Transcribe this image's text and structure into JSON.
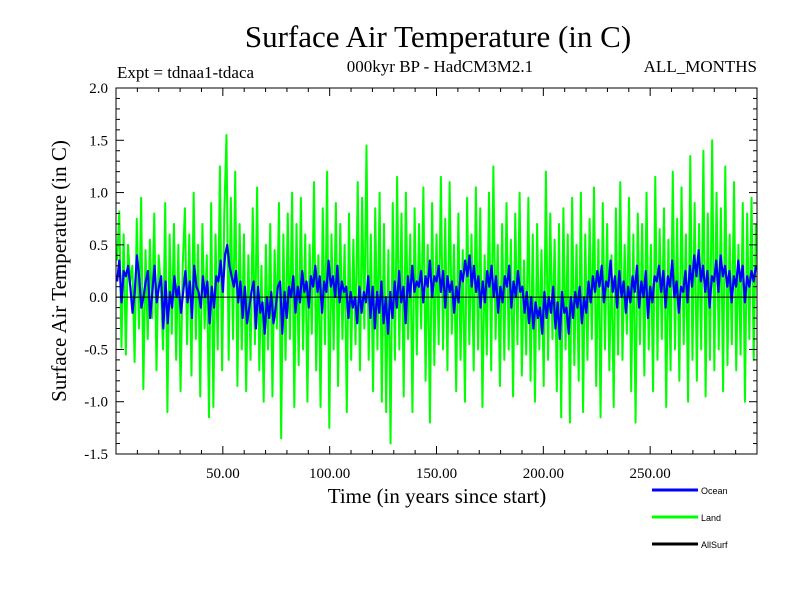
{
  "chart_data": {
    "type": "line",
    "title": "Surface Air Temperature (in C)",
    "subtitle": "000kyr BP - HadCM3M2.1",
    "expt_label": "Expt = tdnaa1-tdaca",
    "months_label": "ALL_MONTHS",
    "xlabel": "Time (in years since start)",
    "ylabel": "Surface Air Temperature (in C)",
    "xlim": [
      0,
      300
    ],
    "ylim": [
      -1.5,
      2.0
    ],
    "xticks": [
      50,
      100,
      150,
      200,
      250
    ],
    "xtick_labels": [
      "50.00",
      "100.00",
      "150.00",
      "200.00",
      "250.00"
    ],
    "yticks": [
      -1.5,
      -1.0,
      -0.5,
      0.0,
      0.5,
      1.0,
      1.5,
      2.0
    ],
    "ytick_labels": [
      "-1.5",
      "-1.0",
      "-0.5",
      "0.0",
      "0.5",
      "1.0",
      "1.5",
      "2.0"
    ],
    "zero_line": 0.0,
    "series": [
      {
        "name": "Land",
        "color": "#00ff00",
        "values": [
          0.35,
          0.82,
          -0.48,
          0.6,
          -0.55,
          0.5,
          0.15,
          0.3,
          -0.62,
          0.75,
          -0.3,
          0.95,
          -0.88,
          0.45,
          -0.4,
          0.55,
          -0.2,
          0.8,
          -0.7,
          0.4,
          0.1,
          -0.5,
          0.9,
          -1.1,
          0.6,
          -0.35,
          0.7,
          -0.6,
          0.5,
          -0.9,
          0.3,
          0.85,
          -0.45,
          0.6,
          -0.75,
          1.0,
          -0.4,
          0.5,
          -0.95,
          0.7,
          -0.3,
          0.4,
          -1.15,
          0.9,
          -1.05,
          0.6,
          -0.5,
          1.25,
          -0.7,
          0.8,
          1.55,
          -0.6,
          0.95,
          -0.4,
          1.2,
          -0.85,
          0.7,
          -0.5,
          0.6,
          -0.9,
          0.4,
          -0.6,
          0.85,
          -0.45,
          1.05,
          -0.7,
          0.3,
          -1.0,
          0.5,
          -0.5,
          0.7,
          -0.95,
          0.45,
          -0.3,
          0.9,
          -1.35,
          0.6,
          -0.6,
          0.8,
          -0.4,
          1.0,
          -1.05,
          0.7,
          -0.65,
          0.95,
          -0.5,
          0.6,
          -1.0,
          0.5,
          -0.35,
          1.1,
          -0.7,
          0.4,
          -1.05,
          0.85,
          -0.45,
          1.2,
          -1.25,
          0.6,
          -0.5,
          0.9,
          -0.85,
          0.7,
          -0.4,
          0.5,
          -1.1,
          0.8,
          -0.6,
          0.55,
          -0.45,
          1.1,
          -0.7,
          0.95,
          -0.3,
          1.45,
          -0.6,
          0.6,
          -0.9,
          0.85,
          -0.5,
          1.0,
          -1.0,
          0.7,
          -1.1,
          0.45,
          -1.4,
          0.9,
          -0.6,
          1.15,
          -0.5,
          0.8,
          -0.95,
          1.0,
          -0.4,
          0.6,
          -1.1,
          0.85,
          -0.55,
          0.7,
          -0.3,
          1.05,
          -0.8,
          0.5,
          -1.2,
          0.9,
          -0.65,
          0.6,
          -0.45,
          1.15,
          -0.5,
          0.75,
          -0.7,
          1.1,
          -0.35,
          0.5,
          -0.9,
          0.8,
          -0.6,
          0.45,
          -1.0,
          0.95,
          -0.45,
          0.6,
          -0.7,
          1.05,
          -0.5,
          0.85,
          -1.05,
          0.4,
          -0.55,
          1.0,
          -0.7,
          1.25,
          -0.4,
          0.5,
          -0.85,
          0.7,
          -0.6,
          0.9,
          -0.5,
          0.55,
          -0.95,
          0.8,
          -0.45,
          1.0,
          -0.75,
          0.35,
          -0.55,
          0.95,
          -0.8,
          0.6,
          -1.0,
          0.7,
          -0.5,
          0.45,
          -0.85,
          1.2,
          -0.6,
          0.8,
          -0.4,
          0.55,
          -0.9,
          0.7,
          -1.15,
          0.85,
          -0.5,
          0.6,
          -1.2,
          0.95,
          -0.65,
          0.5,
          -0.8,
          1.0,
          -1.1,
          0.6,
          -0.6,
          0.75,
          -0.4,
          1.05,
          -0.85,
          0.55,
          -1.15,
          0.9,
          -0.5,
          0.7,
          -0.7,
          0.4,
          -1.05,
          0.85,
          -0.55,
          1.1,
          -0.6,
          0.5,
          -0.35,
          0.95,
          -0.9,
          0.6,
          -1.2,
          0.8,
          -0.45,
          0.7,
          -0.75,
          1.0,
          -0.5,
          0.5,
          -0.9,
          1.15,
          -0.6,
          0.65,
          -0.4,
          0.85,
          -1.05,
          0.55,
          -0.7,
          1.2,
          -0.5,
          0.75,
          -0.8,
          1.05,
          -0.45,
          0.6,
          -1.0,
          1.35,
          -0.6,
          0.9,
          -0.8,
          0.7,
          -0.5,
          1.4,
          -0.95,
          0.8,
          -0.6,
          1.5,
          -0.7,
          1.0,
          -0.5,
          0.85,
          -0.9,
          1.25,
          -0.65,
          0.6,
          -0.45,
          1.1,
          -0.7,
          0.5,
          -0.55,
          0.9,
          -1.0,
          0.8,
          -0.4,
          0.95,
          -0.6,
          0.7
        ]
      },
      {
        "name": "Ocean",
        "color": "#0000ff",
        "values": [
          0.15,
          0.35,
          -0.05,
          0.25,
          0.2,
          0.3,
          0.1,
          -0.15,
          0.05,
          0.4,
          0.2,
          -0.1,
          0.0,
          0.15,
          0.25,
          -0.2,
          0.05,
          0.3,
          -0.05,
          0.1,
          0.2,
          -0.3,
          0.15,
          -0.25,
          0.05,
          -0.1,
          0.2,
          0.0,
          0.1,
          -0.15,
          0.05,
          0.25,
          -0.05,
          0.15,
          -0.2,
          0.3,
          0.1,
          0.05,
          -0.1,
          0.2,
          0.0,
          0.15,
          -0.25,
          0.1,
          -0.1,
          0.2,
          0.15,
          0.35,
          0.05,
          0.4,
          0.5,
          0.3,
          0.2,
          0.1,
          0.25,
          -0.05,
          0.15,
          -0.2,
          0.1,
          -0.25,
          -0.1,
          0.05,
          0.15,
          -0.3,
          0.1,
          -0.15,
          -0.05,
          -0.35,
          0.0,
          -0.2,
          0.05,
          -0.25,
          -0.1,
          0.1,
          0.15,
          -0.35,
          0.05,
          -0.2,
          0.1,
          0.0,
          0.2,
          -0.15,
          0.1,
          -0.05,
          0.25,
          0.05,
          0.15,
          -0.1,
          0.2,
          0.1,
          0.3,
          0.05,
          0.2,
          -0.15,
          0.15,
          0.05,
          0.35,
          0.1,
          0.2,
          0.0,
          0.3,
          -0.05,
          0.15,
          0.05,
          0.1,
          -0.2,
          0.05,
          -0.1,
          0.0,
          -0.25,
          0.1,
          -0.15,
          0.05,
          -0.05,
          0.2,
          -0.2,
          0.1,
          -0.3,
          0.05,
          -0.15,
          0.15,
          -0.25,
          0.0,
          -0.35,
          0.05,
          -0.2,
          0.15,
          -0.1,
          0.25,
          -0.05,
          0.1,
          -0.25,
          0.2,
          0.0,
          0.3,
          0.05,
          0.15,
          0.1,
          0.25,
          -0.05,
          0.2,
          0.1,
          0.35,
          0.0,
          0.2,
          0.15,
          0.3,
          0.05,
          0.25,
          -0.1,
          0.2,
          0.05,
          0.15,
          -0.15,
          0.1,
          -0.05,
          0.25,
          0.15,
          0.35,
          0.2,
          0.4,
          0.1,
          0.3,
          0.05,
          0.2,
          -0.1,
          0.15,
          -0.05,
          0.25,
          0.1,
          0.3,
          0.0,
          0.2,
          -0.15,
          0.1,
          -0.05,
          0.2,
          0.1,
          0.3,
          -0.1,
          0.15,
          0.0,
          0.25,
          0.05,
          0.1,
          -0.15,
          0.05,
          -0.25,
          0.0,
          -0.3,
          -0.05,
          -0.2,
          -0.1,
          -0.35,
          0.05,
          -0.2,
          0.0,
          -0.15,
          0.1,
          -0.3,
          -0.05,
          -0.4,
          0.05,
          -0.15,
          -0.1,
          -0.35,
          0.0,
          -0.2,
          0.05,
          -0.1,
          0.1,
          -0.25,
          0.0,
          -0.15,
          0.15,
          -0.05,
          0.2,
          0.05,
          0.25,
          0.1,
          0.3,
          -0.05,
          0.15,
          0.1,
          0.35,
          0.05,
          0.2,
          -0.1,
          0.25,
          0.0,
          0.15,
          -0.15,
          0.1,
          -0.05,
          0.2,
          0.05,
          0.3,
          -0.1,
          0.15,
          0.0,
          0.25,
          -0.2,
          0.1,
          -0.05,
          0.2,
          0.15,
          0.3,
          0.05,
          0.25,
          -0.1,
          0.2,
          0.1,
          0.35,
          0.0,
          0.15,
          -0.15,
          0.1,
          0.05,
          0.25,
          -0.05,
          0.3,
          0.1,
          0.4,
          0.2,
          0.45,
          0.15,
          0.3,
          0.05,
          0.25,
          -0.1,
          0.2,
          0.15,
          0.35,
          0.05,
          0.4,
          0.2,
          0.3,
          0.1,
          0.25,
          -0.05,
          0.2,
          0.1,
          0.35,
          0.15,
          0.3,
          -0.05,
          0.2,
          0.1,
          0.25,
          0.15,
          0.3
        ]
      },
      {
        "name": "AllSurf",
        "color": "#000000",
        "values": []
      }
    ]
  }
}
